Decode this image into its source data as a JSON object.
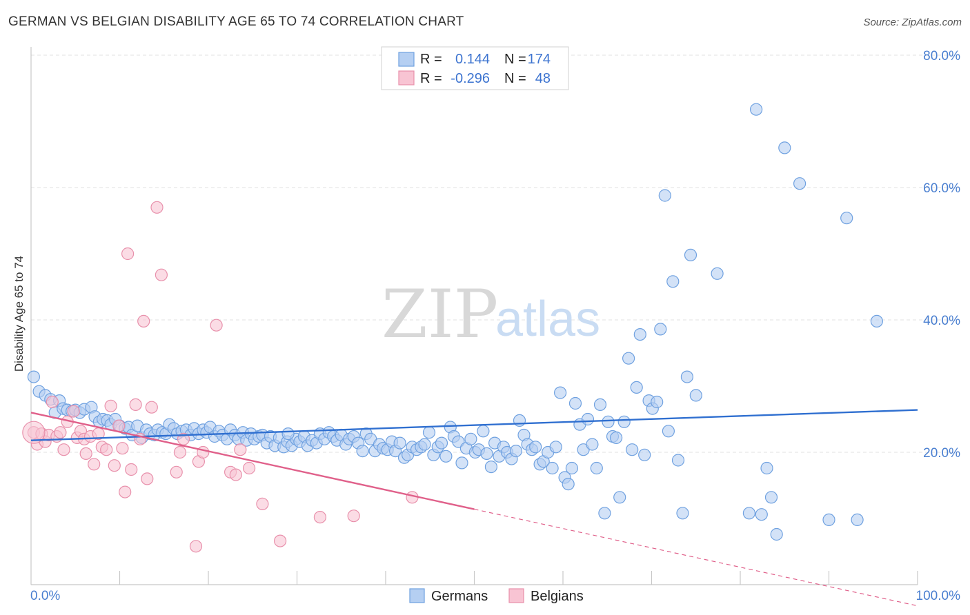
{
  "header": {
    "title": "GERMAN VS BELGIAN DISABILITY AGE 65 TO 74 CORRELATION CHART",
    "source": "Source: ZipAtlas.com"
  },
  "watermark": {
    "zip": "ZIP",
    "atlas": "atlas"
  },
  "legend": {
    "r_label": "R =",
    "n_label": "N =",
    "rows": [
      {
        "r": "0.144",
        "n": "174",
        "color": "#6fa1e0",
        "fill": "#b5cff2"
      },
      {
        "r": "-0.296",
        "n": "48",
        "color": "#e890ab",
        "fill": "#f8c4d3"
      }
    ]
  },
  "bottom_legend": [
    {
      "label": "Germans",
      "fill": "#b5cff2",
      "stroke": "#6fa1e0"
    },
    {
      "label": "Belgians",
      "fill": "#f8c4d3",
      "stroke": "#e890ab"
    }
  ],
  "chart_data": {
    "type": "scatter",
    "ylabel": "Disability Age 65 to 74",
    "xlim": [
      0,
      100
    ],
    "ylim": [
      0,
      80
    ],
    "x_tick_labels": [
      "0.0%",
      "100.0%"
    ],
    "y_ticks": [
      20,
      40,
      60,
      80
    ],
    "y_tick_labels": [
      "20.0%",
      "40.0%",
      "60.0%",
      "80.0%"
    ],
    "grid": true,
    "series": [
      {
        "name": "Germans",
        "color": "#6fa1e0",
        "fill": "#b5cff2",
        "trend": {
          "x": [
            0,
            100
          ],
          "y": [
            21.8,
            26.4
          ],
          "color": "#2f6fd0"
        },
        "points": [
          [
            0.3,
            31.4
          ],
          [
            0.9,
            29.2
          ],
          [
            1.6,
            28.6
          ],
          [
            2.2,
            28.0
          ],
          [
            2.7,
            26.0
          ],
          [
            3.2,
            27.8
          ],
          [
            3.6,
            26.6
          ],
          [
            4.1,
            26.4
          ],
          [
            4.6,
            26.2
          ],
          [
            5.0,
            26.4
          ],
          [
            5.5,
            26.0
          ],
          [
            6.0,
            26.5
          ],
          [
            6.8,
            26.8
          ],
          [
            7.2,
            25.4
          ],
          [
            7.7,
            24.6
          ],
          [
            8.1,
            25.0
          ],
          [
            8.6,
            24.8
          ],
          [
            9.0,
            24.2
          ],
          [
            9.5,
            25.0
          ],
          [
            10.0,
            24.0
          ],
          [
            10.6,
            23.6
          ],
          [
            11.0,
            23.8
          ],
          [
            11.4,
            22.6
          ],
          [
            12.0,
            24.0
          ],
          [
            12.5,
            22.2
          ],
          [
            13.0,
            23.4
          ],
          [
            13.4,
            22.8
          ],
          [
            13.9,
            22.6
          ],
          [
            14.3,
            23.4
          ],
          [
            14.8,
            23.0
          ],
          [
            15.2,
            22.8
          ],
          [
            15.6,
            24.2
          ],
          [
            16.1,
            23.6
          ],
          [
            16.5,
            22.8
          ],
          [
            17.0,
            23.2
          ],
          [
            17.5,
            23.4
          ],
          [
            18.0,
            22.6
          ],
          [
            18.4,
            23.6
          ],
          [
            18.9,
            22.8
          ],
          [
            19.4,
            23.4
          ],
          [
            19.8,
            23.0
          ],
          [
            20.2,
            23.8
          ],
          [
            20.7,
            22.4
          ],
          [
            21.2,
            23.2
          ],
          [
            21.6,
            22.6
          ],
          [
            22.1,
            22.0
          ],
          [
            22.5,
            23.4
          ],
          [
            23.0,
            22.6
          ],
          [
            23.4,
            22.0
          ],
          [
            23.9,
            23.0
          ],
          [
            24.3,
            21.8
          ],
          [
            24.8,
            22.8
          ],
          [
            25.2,
            22.0
          ],
          [
            25.7,
            22.4
          ],
          [
            26.1,
            22.6
          ],
          [
            26.6,
            21.4
          ],
          [
            27.0,
            22.4
          ],
          [
            27.5,
            21.0
          ],
          [
            28.0,
            22.2
          ],
          [
            28.5,
            20.8
          ],
          [
            28.9,
            21.6
          ],
          [
            29.4,
            21.0
          ],
          [
            29.9,
            22.0
          ],
          [
            30.3,
            21.6
          ],
          [
            30.8,
            22.4
          ],
          [
            31.2,
            21.0
          ],
          [
            31.7,
            21.8
          ],
          [
            32.2,
            21.4
          ],
          [
            32.6,
            22.8
          ],
          [
            33.1,
            22.0
          ],
          [
            33.6,
            23.0
          ],
          [
            34.1,
            22.4
          ],
          [
            34.5,
            21.8
          ],
          [
            35.0,
            22.6
          ],
          [
            35.5,
            21.2
          ],
          [
            35.9,
            22.0
          ],
          [
            36.4,
            22.4
          ],
          [
            36.9,
            21.4
          ],
          [
            37.4,
            20.2
          ],
          [
            37.8,
            22.8
          ],
          [
            38.3,
            22.0
          ],
          [
            38.8,
            20.2
          ],
          [
            39.3,
            21.2
          ],
          [
            39.7,
            20.6
          ],
          [
            40.2,
            20.4
          ],
          [
            40.7,
            21.6
          ],
          [
            41.1,
            20.2
          ],
          [
            41.6,
            21.4
          ],
          [
            42.1,
            19.2
          ],
          [
            42.5,
            19.6
          ],
          [
            43.0,
            20.8
          ],
          [
            43.5,
            20.4
          ],
          [
            44.0,
            20.8
          ],
          [
            44.4,
            21.2
          ],
          [
            44.9,
            23.0
          ],
          [
            45.4,
            19.6
          ],
          [
            45.9,
            20.8
          ],
          [
            46.3,
            21.4
          ],
          [
            46.8,
            19.4
          ],
          [
            47.3,
            23.8
          ],
          [
            47.7,
            22.4
          ],
          [
            48.2,
            21.6
          ],
          [
            48.6,
            18.4
          ],
          [
            49.1,
            20.6
          ],
          [
            49.6,
            22.0
          ],
          [
            50.1,
            20.0
          ],
          [
            50.5,
            20.4
          ],
          [
            51.0,
            23.2
          ],
          [
            51.4,
            19.8
          ],
          [
            51.9,
            17.8
          ],
          [
            52.3,
            21.4
          ],
          [
            52.8,
            19.4
          ],
          [
            53.3,
            20.8
          ],
          [
            53.7,
            20.0
          ],
          [
            54.2,
            19.0
          ],
          [
            54.7,
            20.2
          ],
          [
            55.1,
            24.8
          ],
          [
            55.6,
            22.6
          ],
          [
            56.0,
            21.2
          ],
          [
            56.5,
            20.4
          ],
          [
            56.9,
            20.8
          ],
          [
            57.4,
            18.2
          ],
          [
            57.8,
            18.6
          ],
          [
            58.3,
            20.0
          ],
          [
            58.8,
            17.6
          ],
          [
            59.2,
            20.8
          ],
          [
            59.7,
            29.0
          ],
          [
            60.2,
            16.2
          ],
          [
            60.6,
            15.2
          ],
          [
            61.0,
            17.6
          ],
          [
            61.4,
            27.4
          ],
          [
            61.9,
            24.2
          ],
          [
            62.3,
            20.4
          ],
          [
            62.8,
            25.0
          ],
          [
            63.3,
            21.2
          ],
          [
            63.8,
            17.6
          ],
          [
            64.2,
            27.2
          ],
          [
            64.7,
            10.8
          ],
          [
            65.1,
            24.6
          ],
          [
            65.6,
            22.4
          ],
          [
            66.0,
            22.2
          ],
          [
            66.4,
            13.2
          ],
          [
            66.9,
            24.6
          ],
          [
            67.4,
            34.2
          ],
          [
            67.8,
            20.4
          ],
          [
            68.3,
            29.8
          ],
          [
            68.7,
            37.8
          ],
          [
            69.2,
            19.6
          ],
          [
            69.7,
            27.8
          ],
          [
            70.1,
            26.6
          ],
          [
            70.6,
            27.6
          ],
          [
            71.0,
            38.6
          ],
          [
            71.5,
            58.8
          ],
          [
            71.9,
            23.2
          ],
          [
            72.4,
            45.8
          ],
          [
            73.0,
            18.8
          ],
          [
            73.5,
            10.8
          ],
          [
            74.0,
            31.4
          ],
          [
            74.4,
            49.8
          ],
          [
            75.0,
            28.6
          ],
          [
            77.4,
            47.0
          ],
          [
            81.0,
            10.8
          ],
          [
            81.8,
            71.8
          ],
          [
            82.4,
            10.6
          ],
          [
            83.0,
            17.6
          ],
          [
            83.5,
            13.2
          ],
          [
            84.1,
            7.6
          ],
          [
            85.0,
            66.0
          ],
          [
            86.7,
            60.6
          ],
          [
            90.0,
            9.8
          ],
          [
            92.0,
            55.4
          ],
          [
            93.2,
            9.8
          ],
          [
            95.4,
            39.8
          ],
          [
            29.0,
            22.8
          ]
        ]
      },
      {
        "name": "Belgians",
        "color": "#e890ab",
        "fill": "#f8c4d3",
        "trend": {
          "x": [
            0,
            50
          ],
          "y": [
            26.0,
            11.4
          ],
          "color": "#e0608a",
          "dashed_extension": {
            "x": [
              50,
              100
            ],
            "y": [
              11.4,
              -3.2
            ]
          }
        },
        "points": [
          [
            0.3,
            23.0
          ],
          [
            0.7,
            21.2
          ],
          [
            1.2,
            22.8
          ],
          [
            1.6,
            21.6
          ],
          [
            2.0,
            22.6
          ],
          [
            2.4,
            27.6
          ],
          [
            2.9,
            22.4
          ],
          [
            3.3,
            23.0
          ],
          [
            3.7,
            20.4
          ],
          [
            4.1,
            24.6
          ],
          [
            4.8,
            26.2
          ],
          [
            5.2,
            22.2
          ],
          [
            5.6,
            23.2
          ],
          [
            6.0,
            22.0
          ],
          [
            6.2,
            19.8
          ],
          [
            6.7,
            22.4
          ],
          [
            7.1,
            18.2
          ],
          [
            7.6,
            22.8
          ],
          [
            8.0,
            20.8
          ],
          [
            8.5,
            20.4
          ],
          [
            9.0,
            27.0
          ],
          [
            9.4,
            18.0
          ],
          [
            9.9,
            24.0
          ],
          [
            10.3,
            20.6
          ],
          [
            10.6,
            14.0
          ],
          [
            10.9,
            50.0
          ],
          [
            11.3,
            17.4
          ],
          [
            11.8,
            27.2
          ],
          [
            12.3,
            22.0
          ],
          [
            12.7,
            39.8
          ],
          [
            13.1,
            16.0
          ],
          [
            13.6,
            26.8
          ],
          [
            14.2,
            57.0
          ],
          [
            14.7,
            46.8
          ],
          [
            16.4,
            17.0
          ],
          [
            16.8,
            20.0
          ],
          [
            17.2,
            22.0
          ],
          [
            18.6,
            5.8
          ],
          [
            18.9,
            18.6
          ],
          [
            19.4,
            20.0
          ],
          [
            20.9,
            39.2
          ],
          [
            22.5,
            17.0
          ],
          [
            23.1,
            16.6
          ],
          [
            23.6,
            20.4
          ],
          [
            24.6,
            17.6
          ],
          [
            26.1,
            12.2
          ],
          [
            28.1,
            6.6
          ],
          [
            32.6,
            10.2
          ],
          [
            36.4,
            10.4
          ],
          [
            43.0,
            13.2
          ]
        ]
      }
    ]
  }
}
